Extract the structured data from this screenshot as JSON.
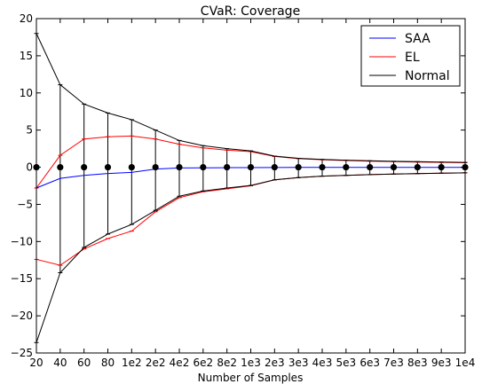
{
  "chart_data": {
    "type": "line",
    "title": "CVaR: Coverage",
    "xlabel": "Number of Samples",
    "ylabel": "",
    "categories": [
      "20",
      "40",
      "60",
      "80",
      "1e2",
      "2e2",
      "4e2",
      "6e2",
      "8e2",
      "1e3",
      "2e3",
      "3e3",
      "4e3",
      "5e3",
      "6e3",
      "7e3",
      "8e3",
      "9e3",
      "1e4"
    ],
    "ylim": [
      -25,
      20
    ],
    "yticks": [
      -25,
      -20,
      -15,
      -10,
      -5,
      0,
      5,
      10,
      15,
      20
    ],
    "grid": false,
    "legend_position": "top-right",
    "colors": {
      "SAA": "#0000ff",
      "EL": "#ff0000",
      "Normal": "#000000",
      "markers": "#000000"
    },
    "series": [
      {
        "name": "SAA",
        "color": "#0000ff",
        "values": [
          -2.8,
          -1.5,
          -1.1,
          -0.85,
          -0.7,
          -0.25,
          -0.1,
          -0.08,
          -0.06,
          -0.05,
          -0.04,
          -0.03,
          -0.03,
          -0.02,
          -0.02,
          -0.02,
          -0.02,
          -0.02,
          -0.02
        ]
      },
      {
        "name": "EL",
        "color": "#ff0000",
        "upper": [
          -2.8,
          1.6,
          3.8,
          4.1,
          4.2,
          3.8,
          3.1,
          2.6,
          2.3,
          2.1,
          1.45,
          1.15,
          1.0,
          0.9,
          0.82,
          0.75,
          0.7,
          0.65,
          0.6
        ],
        "lower": [
          -12.4,
          -13.2,
          -11.0,
          -9.6,
          -8.6,
          -6.0,
          -4.1,
          -3.3,
          -2.9,
          -2.5,
          -1.7,
          -1.4,
          -1.2,
          -1.1,
          -1.0,
          -0.92,
          -0.86,
          -0.8,
          -0.75
        ]
      },
      {
        "name": "Normal",
        "color": "#000000",
        "upper": [
          18.0,
          11.1,
          8.5,
          7.3,
          6.4,
          5.0,
          3.6,
          2.9,
          2.5,
          2.2,
          1.5,
          1.2,
          1.05,
          0.95,
          0.87,
          0.8,
          0.75,
          0.7,
          0.65
        ],
        "lower": [
          -23.6,
          -14.2,
          -10.8,
          -9.0,
          -7.7,
          -5.8,
          -3.9,
          -3.2,
          -2.8,
          -2.45,
          -1.7,
          -1.4,
          -1.2,
          -1.1,
          -1.0,
          -0.92,
          -0.86,
          -0.8,
          -0.75
        ]
      }
    ],
    "points": {
      "values": [
        0,
        0,
        0,
        0,
        0,
        0,
        0,
        0,
        0,
        0,
        0,
        0,
        0,
        0,
        0,
        0,
        0,
        0,
        0
      ]
    }
  }
}
